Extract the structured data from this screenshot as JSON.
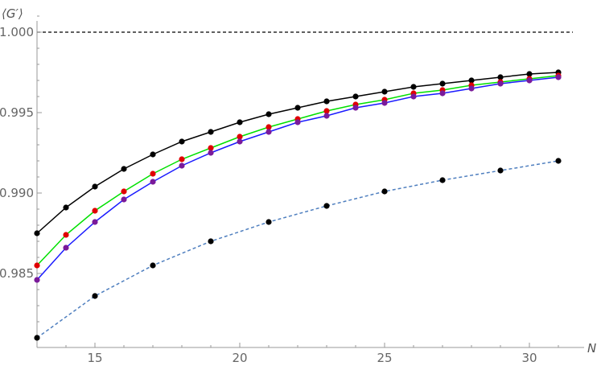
{
  "chart_data": {
    "type": "line",
    "title": "",
    "xlabel": "N",
    "ylabel": "⟨G′⟩",
    "xlim": [
      13,
      31.5
    ],
    "ylim": [
      0.9804,
      1.0016
    ],
    "x_ticks": [
      15,
      20,
      25,
      30
    ],
    "x_tick_labels": [
      "15",
      "20",
      "25",
      "30"
    ],
    "y_ticks": [
      0.985,
      0.99,
      0.995,
      1.0
    ],
    "y_tick_labels": [
      "0.985",
      "0.990",
      "0.995",
      "1.000"
    ],
    "grid": false,
    "reference_line": {
      "y": 1.0,
      "color": "#000000",
      "style": "dashed"
    },
    "series": [
      {
        "line_color": "#000000",
        "marker_color": "#000000",
        "line_style": "solid",
        "x": [
          13,
          14,
          15,
          16,
          17,
          18,
          19,
          20,
          21,
          22,
          23,
          24,
          25,
          26,
          27,
          28,
          29,
          30,
          31
        ],
        "y": [
          0.9875,
          0.9891,
          0.9904,
          0.9915,
          0.9924,
          0.9932,
          0.9938,
          0.9944,
          0.9949,
          0.9953,
          0.9957,
          0.996,
          0.9963,
          0.9966,
          0.9968,
          0.997,
          0.9972,
          0.9974,
          0.9975
        ]
      },
      {
        "line_color": "#00e000",
        "marker_color": "#e00000",
        "line_style": "solid",
        "x": [
          13,
          14,
          15,
          16,
          17,
          18,
          19,
          20,
          21,
          22,
          23,
          24,
          25,
          26,
          27,
          28,
          29,
          30,
          31
        ],
        "y": [
          0.9855,
          0.9874,
          0.9889,
          0.9901,
          0.9912,
          0.9921,
          0.9928,
          0.9935,
          0.9941,
          0.9946,
          0.9951,
          0.9955,
          0.9958,
          0.9962,
          0.9964,
          0.9967,
          0.9969,
          0.9971,
          0.9973
        ]
      },
      {
        "line_color": "#1a1aff",
        "marker_color": "#7a1a9a",
        "line_style": "solid",
        "x": [
          13,
          14,
          15,
          16,
          17,
          18,
          19,
          20,
          21,
          22,
          23,
          24,
          25,
          26,
          27,
          28,
          29,
          30,
          31
        ],
        "y": [
          0.9846,
          0.9866,
          0.9882,
          0.9896,
          0.9907,
          0.9917,
          0.9925,
          0.9932,
          0.9938,
          0.9944,
          0.9948,
          0.9953,
          0.9956,
          0.996,
          0.9962,
          0.9965,
          0.9968,
          0.997,
          0.9972
        ]
      },
      {
        "line_color": "#4f7fbf",
        "marker_color": "#000000",
        "line_style": "dashed",
        "x": [
          13,
          15,
          17,
          19,
          21,
          23,
          25,
          27,
          29,
          31
        ],
        "y": [
          0.981,
          0.9836,
          0.9855,
          0.987,
          0.9882,
          0.9892,
          0.9901,
          0.9908,
          0.9914,
          0.992
        ]
      }
    ]
  }
}
